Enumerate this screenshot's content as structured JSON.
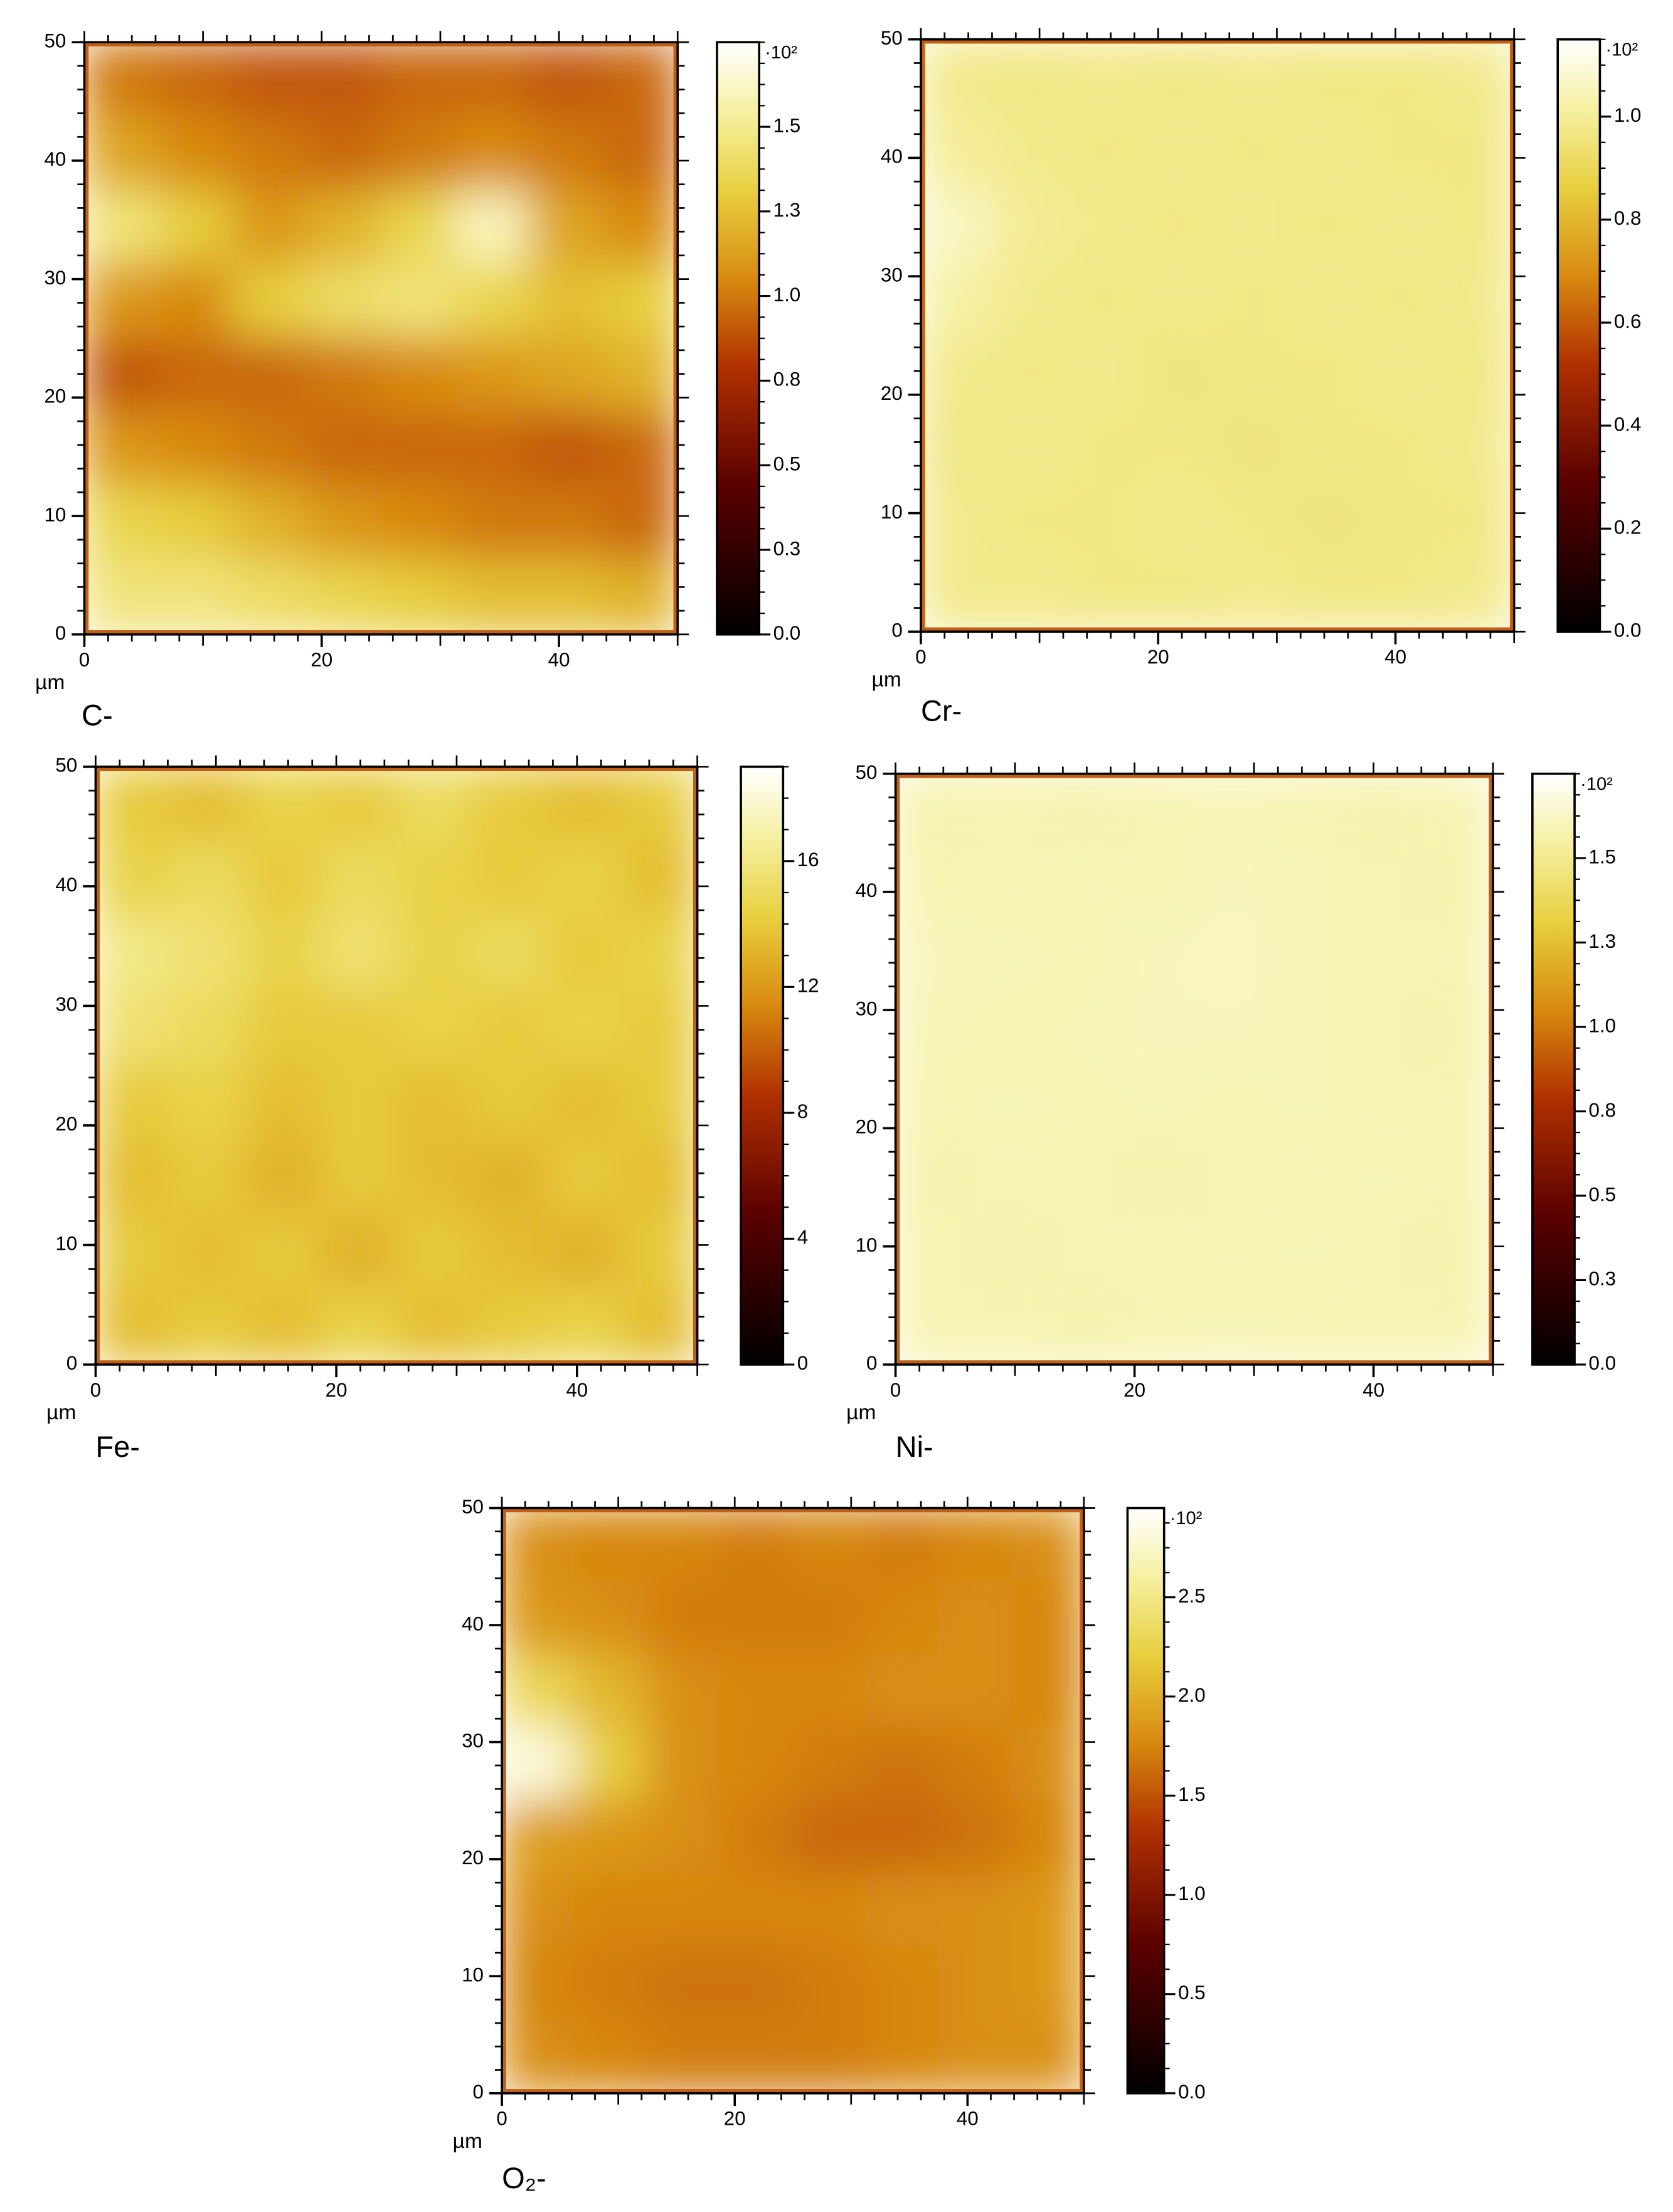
{
  "chart_data": [
    {
      "type": "heatmap",
      "title": "C-",
      "x_label": "µm",
      "xlim": [
        0,
        50
      ],
      "ylim": [
        0,
        50
      ],
      "xticks": [
        0,
        20,
        40
      ],
      "yticks": [
        0,
        10,
        20,
        30,
        40,
        50
      ],
      "clim": [
        0,
        1.75
      ],
      "cticks": [
        {
          "value": 0,
          "label": "0.0"
        },
        {
          "value": 0.25,
          "label": "0.3"
        },
        0.5,
        {
          "value": 0.75,
          "label": "0.8"
        },
        {
          "value": 1,
          "label": "1.0"
        },
        {
          "value": 1.25,
          "label": "1.3"
        },
        1.5
      ],
      "cbar_multiplier": "·10²",
      "z": [
        [
          1.0,
          0.95,
          0.9,
          0.9,
          0.95,
          0.95,
          0.9,
          0.95
        ],
        [
          1.15,
          1.05,
          1.0,
          0.95,
          1.0,
          1.05,
          1.0,
          0.95
        ],
        [
          1.45,
          1.3,
          1.1,
          1.2,
          1.35,
          1.6,
          1.15,
          1.05
        ],
        [
          1.1,
          1.05,
          1.3,
          1.4,
          1.45,
          1.35,
          1.25,
          1.3
        ],
        [
          0.9,
          0.95,
          0.95,
          1.0,
          1.05,
          1.1,
          1.15,
          1.2
        ],
        [
          1.1,
          1.05,
          1.0,
          0.95,
          0.95,
          0.95,
          0.9,
          0.95
        ],
        [
          1.35,
          1.3,
          1.2,
          1.1,
          1.05,
          1.0,
          1.0,
          0.95
        ],
        [
          1.45,
          1.45,
          1.4,
          1.35,
          1.3,
          1.25,
          1.25,
          1.2
        ]
      ]
    },
    {
      "type": "heatmap",
      "title": "Cr-",
      "x_label": "µm",
      "xlim": [
        0,
        50
      ],
      "ylim": [
        0,
        50
      ],
      "xticks": [
        0,
        20,
        40
      ],
      "yticks": [
        0,
        10,
        20,
        30,
        40,
        50
      ],
      "clim": [
        0,
        1.15
      ],
      "cticks": [
        {
          "value": 0,
          "label": "0.0"
        },
        0.2,
        0.4,
        0.6,
        0.8,
        {
          "value": 1,
          "label": "1.0"
        }
      ],
      "cbar_multiplier": "·10²",
      "z": [
        [
          0.98,
          0.97,
          0.98,
          0.97,
          0.98,
          0.97,
          0.97,
          0.98
        ],
        [
          1.0,
          0.98,
          0.97,
          0.98,
          0.97,
          0.98,
          0.97,
          0.97
        ],
        [
          1.06,
          0.99,
          0.98,
          0.97,
          0.98,
          0.97,
          0.98,
          0.97
        ],
        [
          1.02,
          0.98,
          0.97,
          0.98,
          0.97,
          0.98,
          0.97,
          0.98
        ],
        [
          0.98,
          0.97,
          0.98,
          0.96,
          0.97,
          0.97,
          0.98,
          0.97
        ],
        [
          0.97,
          0.98,
          0.97,
          0.97,
          0.96,
          0.97,
          0.97,
          0.98
        ],
        [
          0.98,
          0.97,
          0.97,
          0.98,
          0.97,
          0.96,
          0.97,
          0.97
        ],
        [
          0.98,
          0.98,
          0.97,
          0.97,
          0.98,
          0.97,
          0.97,
          0.98
        ]
      ]
    },
    {
      "type": "heatmap",
      "title": "Fe-",
      "x_label": "µm",
      "xlim": [
        0,
        50
      ],
      "ylim": [
        0,
        50
      ],
      "xticks": [
        0,
        20,
        40
      ],
      "yticks": [
        0,
        10,
        20,
        30,
        40,
        50
      ],
      "clim": [
        0,
        19
      ],
      "cticks": [
        0,
        4,
        8,
        12,
        16
      ],
      "z": [
        [
          14,
          13.5,
          14.5,
          14,
          15,
          14,
          13.5,
          14
        ],
        [
          14.5,
          15,
          14,
          15,
          14.5,
          14,
          14.5,
          13.5
        ],
        [
          16,
          15.5,
          14.5,
          15.5,
          14.5,
          15,
          14,
          14.5
        ],
        [
          15.5,
          15,
          14,
          14,
          14.5,
          14,
          14.5,
          14
        ],
        [
          14,
          14.5,
          13.5,
          14,
          13.5,
          14,
          13.5,
          14
        ],
        [
          13.5,
          14,
          13,
          14,
          13.5,
          13,
          14,
          13.5
        ],
        [
          14,
          13.5,
          14,
          13,
          14,
          13.5,
          13,
          14
        ],
        [
          13.5,
          14,
          13.5,
          14.5,
          13.5,
          14,
          14.5,
          13.5
        ]
      ]
    },
    {
      "type": "heatmap",
      "title": "Ni-",
      "x_label": "µm",
      "xlim": [
        0,
        50
      ],
      "ylim": [
        0,
        50
      ],
      "xticks": [
        0,
        20,
        40
      ],
      "yticks": [
        0,
        10,
        20,
        30,
        40,
        50
      ],
      "clim": [
        0,
        1.75
      ],
      "cticks": [
        {
          "value": 0,
          "label": "0.0"
        },
        {
          "value": 0.25,
          "label": "0.3"
        },
        0.5,
        {
          "value": 0.75,
          "label": "0.8"
        },
        {
          "value": 1,
          "label": "1.0"
        },
        {
          "value": 1.25,
          "label": "1.3"
        },
        1.5
      ],
      "cbar_multiplier": "·10²",
      "z": [
        [
          1.57,
          1.58,
          1.57,
          1.58,
          1.59,
          1.58,
          1.57,
          1.58
        ],
        [
          1.58,
          1.58,
          1.59,
          1.58,
          1.6,
          1.59,
          1.58,
          1.57
        ],
        [
          1.6,
          1.59,
          1.58,
          1.6,
          1.61,
          1.59,
          1.58,
          1.58
        ],
        [
          1.59,
          1.58,
          1.59,
          1.6,
          1.6,
          1.59,
          1.58,
          1.57
        ],
        [
          1.58,
          1.59,
          1.58,
          1.59,
          1.58,
          1.59,
          1.58,
          1.58
        ],
        [
          1.57,
          1.58,
          1.58,
          1.57,
          1.58,
          1.58,
          1.59,
          1.58
        ],
        [
          1.58,
          1.57,
          1.58,
          1.59,
          1.58,
          1.59,
          1.58,
          1.57
        ],
        [
          1.58,
          1.58,
          1.57,
          1.58,
          1.59,
          1.58,
          1.58,
          1.58
        ]
      ]
    },
    {
      "type": "heatmap",
      "title": "O₂-",
      "x_label": "µm",
      "xlim": [
        0,
        50
      ],
      "ylim": [
        0,
        50
      ],
      "xticks": [
        0,
        20,
        40
      ],
      "yticks": [
        0,
        10,
        20,
        30,
        40,
        50
      ],
      "clim": [
        0,
        2.95
      ],
      "cticks": [
        {
          "value": 0,
          "label": "0.0"
        },
        0.5,
        {
          "value": 1,
          "label": "1.0"
        },
        1.5,
        {
          "value": 2,
          "label": "2.0"
        },
        2.5
      ],
      "cbar_multiplier": "·10²",
      "z": [
        [
          1.8,
          1.75,
          1.75,
          1.7,
          1.75,
          1.7,
          1.75,
          1.8
        ],
        [
          1.85,
          1.8,
          1.7,
          1.7,
          1.7,
          1.75,
          1.8,
          1.75
        ],
        [
          2.3,
          2.05,
          1.8,
          1.75,
          1.75,
          1.8,
          1.8,
          1.75
        ],
        [
          2.8,
          2.2,
          1.8,
          1.75,
          1.7,
          1.65,
          1.7,
          1.8
        ],
        [
          1.9,
          1.85,
          1.8,
          1.7,
          1.6,
          1.6,
          1.65,
          1.75
        ],
        [
          1.8,
          1.75,
          1.75,
          1.75,
          1.75,
          1.8,
          1.8,
          1.85
        ],
        [
          1.75,
          1.7,
          1.65,
          1.65,
          1.7,
          1.75,
          1.8,
          1.85
        ],
        [
          1.8,
          1.75,
          1.7,
          1.7,
          1.7,
          1.75,
          1.8,
          1.8
        ]
      ]
    }
  ]
}
